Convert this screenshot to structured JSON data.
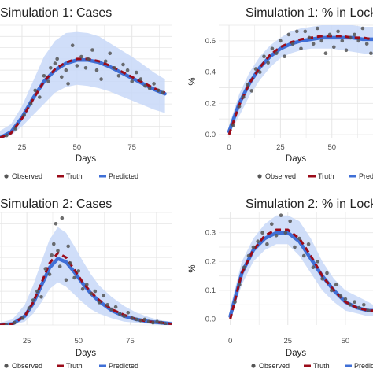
{
  "chart_data": [
    {
      "type": "scatter",
      "title": "Simulation 1: Cases",
      "xlabel": "Days",
      "ylabel": "",
      "xlim": [
        15,
        93
      ],
      "ylim": [
        0,
        1
      ],
      "x_ticks": [
        "25",
        "50",
        "75"
      ],
      "x_tick_values": [
        25,
        50,
        75
      ],
      "y_ticks": [],
      "band": {
        "x": [
          15,
          20,
          25,
          30,
          35,
          40,
          45,
          50,
          55,
          60,
          65,
          70,
          75,
          80,
          85,
          90
        ],
        "lower": [
          0,
          0.02,
          0.1,
          0.2,
          0.3,
          0.4,
          0.45,
          0.47,
          0.46,
          0.44,
          0.41,
          0.37,
          0.33,
          0.29,
          0.25,
          0.22
        ],
        "upper": [
          0.06,
          0.12,
          0.28,
          0.5,
          0.72,
          0.86,
          0.93,
          0.94,
          0.93,
          0.9,
          0.84,
          0.78,
          0.72,
          0.65,
          0.58,
          0.52
        ]
      },
      "series": [
        {
          "name": "Truth",
          "x": [
            15,
            20,
            25,
            30,
            35,
            40,
            45,
            50,
            55,
            60,
            65,
            70,
            75,
            80,
            85,
            90
          ],
          "values": [
            0,
            0.04,
            0.17,
            0.34,
            0.5,
            0.61,
            0.67,
            0.7,
            0.7,
            0.68,
            0.64,
            0.59,
            0.54,
            0.49,
            0.44,
            0.4
          ]
        },
        {
          "name": "Predicted",
          "x": [
            15,
            20,
            25,
            30,
            35,
            40,
            45,
            50,
            55,
            60,
            65,
            70,
            75,
            80,
            85,
            90
          ],
          "values": [
            0,
            0.05,
            0.18,
            0.35,
            0.5,
            0.6,
            0.66,
            0.69,
            0.69,
            0.67,
            0.63,
            0.58,
            0.53,
            0.48,
            0.43,
            0.39
          ]
        },
        {
          "name": "Observed",
          "x": [
            18,
            22,
            26,
            29,
            31,
            33,
            35,
            37,
            38,
            40,
            41,
            43,
            45,
            46,
            48,
            50,
            52,
            54,
            55,
            57,
            59,
            61,
            63,
            65,
            67,
            69,
            71,
            73,
            75,
            77,
            79,
            81,
            83,
            85,
            87,
            89
          ],
          "values": [
            0.02,
            0.08,
            0.2,
            0.3,
            0.42,
            0.36,
            0.55,
            0.5,
            0.62,
            0.66,
            0.7,
            0.54,
            0.6,
            0.48,
            0.82,
            0.64,
            0.72,
            0.62,
            0.7,
            0.78,
            0.6,
            0.52,
            0.68,
            0.75,
            0.62,
            0.55,
            0.65,
            0.6,
            0.5,
            0.58,
            0.52,
            0.46,
            0.44,
            0.48,
            0.42,
            0.4
          ]
        }
      ],
      "legend": [
        "Observed",
        "Truth",
        "Predicted"
      ],
      "legend_position": "bottom"
    },
    {
      "type": "scatter",
      "title": "Simulation 1: % in Lock",
      "xlabel": "Days",
      "ylabel": "%",
      "xlim": [
        -5,
        70
      ],
      "ylim": [
        -0.02,
        0.7
      ],
      "x_ticks": [
        "0",
        "25",
        "50"
      ],
      "x_tick_values": [
        0,
        25,
        50
      ],
      "y_ticks": [
        "0.0",
        "0.2",
        "0.4",
        "0.6"
      ],
      "y_tick_values": [
        0,
        0.2,
        0.4,
        0.6
      ],
      "band": {
        "x": [
          0,
          5,
          10,
          15,
          20,
          25,
          30,
          35,
          40,
          45,
          50,
          55,
          60,
          65,
          70
        ],
        "lower": [
          0,
          0.12,
          0.25,
          0.35,
          0.43,
          0.49,
          0.52,
          0.54,
          0.55,
          0.55,
          0.55,
          0.54,
          0.53,
          0.52,
          0.51
        ],
        "upper": [
          0.06,
          0.26,
          0.4,
          0.5,
          0.57,
          0.62,
          0.66,
          0.68,
          0.69,
          0.7,
          0.7,
          0.7,
          0.7,
          0.69,
          0.69
        ]
      },
      "series": [
        {
          "name": "Truth",
          "x": [
            0,
            5,
            10,
            15,
            20,
            25,
            30,
            35,
            40,
            45,
            50,
            55,
            60,
            65,
            70
          ],
          "values": [
            0,
            0.19,
            0.33,
            0.43,
            0.51,
            0.56,
            0.59,
            0.61,
            0.62,
            0.63,
            0.63,
            0.63,
            0.62,
            0.62,
            0.61
          ]
        },
        {
          "name": "Predicted",
          "x": [
            0,
            5,
            10,
            15,
            20,
            25,
            30,
            35,
            40,
            45,
            50,
            55,
            60,
            65,
            70
          ],
          "values": [
            0.02,
            0.2,
            0.33,
            0.43,
            0.5,
            0.55,
            0.58,
            0.6,
            0.61,
            0.62,
            0.62,
            0.62,
            0.62,
            0.61,
            0.61
          ]
        },
        {
          "name": "Observed",
          "x": [
            2,
            5,
            7,
            9,
            11,
            13,
            15,
            17,
            19,
            21,
            23,
            25,
            27,
            29,
            31,
            33,
            35,
            37,
            39,
            41,
            43,
            45,
            47,
            49,
            51,
            53,
            55,
            57,
            59,
            61,
            63,
            65,
            67,
            69
          ],
          "values": [
            0.06,
            0.18,
            0.24,
            0.32,
            0.28,
            0.42,
            0.4,
            0.5,
            0.46,
            0.55,
            0.52,
            0.6,
            0.5,
            0.64,
            0.58,
            0.66,
            0.55,
            0.66,
            0.62,
            0.58,
            0.68,
            0.6,
            0.52,
            0.64,
            0.56,
            0.66,
            0.6,
            0.54,
            0.62,
            0.64,
            0.6,
            0.68,
            0.58,
            0.52
          ]
        }
      ],
      "legend": [
        "Observed",
        "Truth",
        "Predic"
      ],
      "legend_position": "bottom"
    },
    {
      "type": "scatter",
      "title": "Simulation 2: Cases",
      "xlabel": "Days",
      "ylabel": "",
      "xlim": [
        12,
        95
      ],
      "ylim": [
        0,
        1
      ],
      "x_ticks": [
        "25",
        "50",
        "75"
      ],
      "x_tick_values": [
        25,
        50,
        75
      ],
      "y_ticks": [],
      "band": {
        "x": [
          12,
          18,
          24,
          28,
          32,
          36,
          40,
          44,
          48,
          52,
          56,
          60,
          66,
          72,
          78,
          84,
          90,
          95
        ],
        "lower": [
          0,
          0,
          0.03,
          0.1,
          0.2,
          0.32,
          0.38,
          0.34,
          0.27,
          0.2,
          0.14,
          0.1,
          0.06,
          0.03,
          0.02,
          0.01,
          0,
          0
        ],
        "upper": [
          0.02,
          0.05,
          0.18,
          0.35,
          0.56,
          0.76,
          0.87,
          0.82,
          0.7,
          0.57,
          0.45,
          0.35,
          0.25,
          0.17,
          0.11,
          0.07,
          0.04,
          0.03
        ]
      },
      "series": [
        {
          "name": "Truth",
          "x": [
            12,
            18,
            24,
            28,
            32,
            36,
            40,
            44,
            48,
            52,
            56,
            60,
            66,
            72,
            78,
            84,
            90,
            95
          ],
          "values": [
            0,
            0.01,
            0.08,
            0.2,
            0.37,
            0.55,
            0.64,
            0.6,
            0.49,
            0.38,
            0.29,
            0.22,
            0.14,
            0.09,
            0.05,
            0.03,
            0.02,
            0.01
          ]
        },
        {
          "name": "Predicted",
          "x": [
            12,
            18,
            24,
            28,
            32,
            36,
            40,
            44,
            48,
            52,
            56,
            60,
            66,
            72,
            78,
            84,
            90,
            95
          ],
          "values": [
            0,
            0.01,
            0.08,
            0.19,
            0.35,
            0.51,
            0.59,
            0.56,
            0.47,
            0.37,
            0.28,
            0.21,
            0.13,
            0.08,
            0.05,
            0.03,
            0.02,
            0.01
          ]
        },
        {
          "name": "Observed",
          "x": [
            15,
            19,
            23,
            26,
            28,
            30,
            32,
            34,
            36,
            37,
            38,
            39,
            40,
            41,
            42,
            44,
            45,
            46,
            48,
            50,
            52,
            54,
            56,
            58,
            60,
            62,
            64,
            66,
            68,
            70,
            72,
            74,
            76,
            78,
            80,
            82,
            84,
            86,
            88,
            90,
            92
          ],
          "values": [
            0,
            0.02,
            0.06,
            0.15,
            0.22,
            0.3,
            0.25,
            0.5,
            0.45,
            0.62,
            0.72,
            0.9,
            0.66,
            0.52,
            0.95,
            0.4,
            0.7,
            0.55,
            0.42,
            0.48,
            0.32,
            0.36,
            0.28,
            0.3,
            0.2,
            0.26,
            0.18,
            0.14,
            0.16,
            0.1,
            0.08,
            0.11,
            0.06,
            0.05,
            0.04,
            0.05,
            0.03,
            0.02,
            0.03,
            0.02,
            0.01
          ]
        }
      ],
      "legend": [
        "Observed",
        "Truth",
        "Predicted"
      ],
      "legend_position": "bottom"
    },
    {
      "type": "scatter",
      "title": "Simulation 2: % in Lock",
      "xlabel": "Days",
      "ylabel": "%",
      "xlim": [
        -5,
        62
      ],
      "ylim": [
        -0.02,
        0.37
      ],
      "x_ticks": [
        "0",
        "25",
        "50"
      ],
      "x_tick_values": [
        0,
        25,
        50
      ],
      "y_ticks": [
        "0.0",
        "0.1",
        "0.2",
        "0.3"
      ],
      "y_tick_values": [
        0,
        0.1,
        0.2,
        0.3
      ],
      "band": {
        "x": [
          0,
          5,
          10,
          15,
          20,
          25,
          30,
          35,
          40,
          45,
          50,
          55,
          60,
          62
        ],
        "lower": [
          0,
          0.12,
          0.2,
          0.24,
          0.26,
          0.26,
          0.22,
          0.16,
          0.1,
          0.06,
          0.03,
          0.02,
          0.01,
          0.01
        ],
        "upper": [
          0.04,
          0.2,
          0.28,
          0.33,
          0.36,
          0.36,
          0.34,
          0.28,
          0.2,
          0.14,
          0.1,
          0.08,
          0.06,
          0.05
        ]
      },
      "series": [
        {
          "name": "Truth",
          "x": [
            0,
            5,
            10,
            15,
            20,
            25,
            30,
            35,
            40,
            45,
            50,
            55,
            60,
            62
          ],
          "values": [
            0,
            0.16,
            0.24,
            0.29,
            0.31,
            0.31,
            0.28,
            0.22,
            0.15,
            0.1,
            0.06,
            0.04,
            0.03,
            0.03
          ]
        },
        {
          "name": "Predicted",
          "x": [
            0,
            5,
            10,
            15,
            20,
            25,
            30,
            35,
            40,
            45,
            50,
            55,
            60,
            62
          ],
          "values": [
            0.01,
            0.16,
            0.24,
            0.28,
            0.3,
            0.3,
            0.27,
            0.21,
            0.15,
            0.1,
            0.06,
            0.04,
            0.03,
            0.03
          ]
        },
        {
          "name": "Observed",
          "x": [
            2,
            4,
            6,
            8,
            10,
            12,
            14,
            16,
            18,
            20,
            22,
            24,
            26,
            28,
            30,
            32,
            34,
            36,
            38,
            40,
            42,
            44,
            46,
            48,
            50,
            52,
            54,
            56,
            58,
            60
          ],
          "values": [
            0.06,
            0.12,
            0.18,
            0.22,
            0.25,
            0.27,
            0.3,
            0.26,
            0.33,
            0.29,
            0.36,
            0.3,
            0.34,
            0.25,
            0.28,
            0.22,
            0.26,
            0.18,
            0.2,
            0.14,
            0.16,
            0.1,
            0.12,
            0.08,
            0.07,
            0.05,
            0.06,
            0.04,
            0.05,
            0.03
          ]
        }
      ],
      "legend": [
        "Observed",
        "Truth",
        "Predic"
      ],
      "legend_position": "bottom"
    }
  ],
  "colors": {
    "band": "#c8d8f8",
    "truth": "#9b0b19",
    "predicted": "#3f6fd6",
    "observed": "#555555",
    "grid": "#e6e6e6",
    "text": "#222222"
  }
}
